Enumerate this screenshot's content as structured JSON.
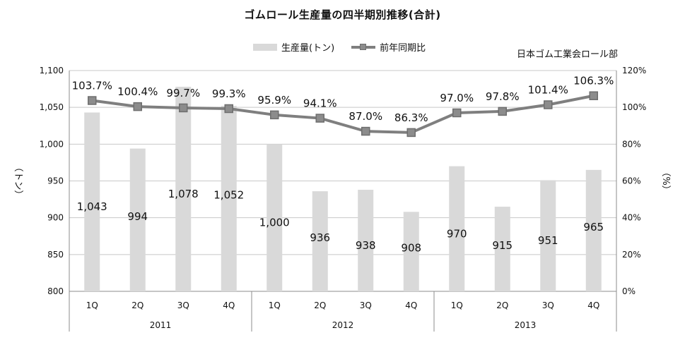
{
  "chart_data": {
    "type": "bar",
    "title": "ゴムロール生産量の四半期別推移(合計)",
    "source": "日本ゴム工業会ロール部",
    "categories": [
      "1Q",
      "2Q",
      "3Q",
      "4Q",
      "1Q",
      "2Q",
      "3Q",
      "4Q",
      "1Q",
      "2Q",
      "3Q",
      "4Q"
    ],
    "groups": [
      {
        "label": "2011",
        "count": 4
      },
      {
        "label": "2012",
        "count": 4
      },
      {
        "label": "2013",
        "count": 4
      }
    ],
    "series": [
      {
        "name": "生産量(トン)",
        "type": "bar",
        "axis": "left",
        "values": [
          1043,
          994,
          1078,
          1052,
          1000,
          936,
          938,
          908,
          970,
          915,
          951,
          965
        ],
        "labels": [
          "1,043",
          "994",
          "1,078",
          "1,052",
          "1,000",
          "936",
          "938",
          "908",
          "970",
          "915",
          "951",
          "965"
        ]
      },
      {
        "name": "前年同期比",
        "type": "line",
        "axis": "right",
        "values": [
          103.7,
          100.4,
          99.7,
          99.3,
          95.9,
          94.1,
          87.0,
          86.3,
          97.0,
          97.8,
          101.4,
          106.3
        ],
        "labels": [
          "103.7%",
          "100.4%",
          "99.7%",
          "99.3%",
          "95.9%",
          "94.1%",
          "87.0%",
          "86.3%",
          "97.0%",
          "97.8%",
          "101.4%",
          "106.3%"
        ]
      }
    ],
    "y_left": {
      "label": "（トン）",
      "range": [
        800,
        1100
      ],
      "ticks": [
        800,
        850,
        900,
        950,
        1000,
        1050,
        1100
      ],
      "tick_labels": [
        "800",
        "850",
        "900",
        "950",
        "1,000",
        "1,050",
        "1,100"
      ]
    },
    "y_right": {
      "label": "（%）",
      "range": [
        0,
        120
      ],
      "ticks": [
        0,
        20,
        40,
        60,
        80,
        100,
        120
      ],
      "tick_labels": [
        "0%",
        "20%",
        "40%",
        "60%",
        "80%",
        "100%",
        "120%"
      ]
    },
    "grid": true,
    "legend_position": "top",
    "colors": {
      "bar": "#d9d9d9",
      "line": "#7f7f7f",
      "marker_fill": "#8c8c8c",
      "marker_stroke": "#6e6e6e",
      "grid": "#c8c8c8",
      "axis": "#8c8c8c"
    }
  }
}
